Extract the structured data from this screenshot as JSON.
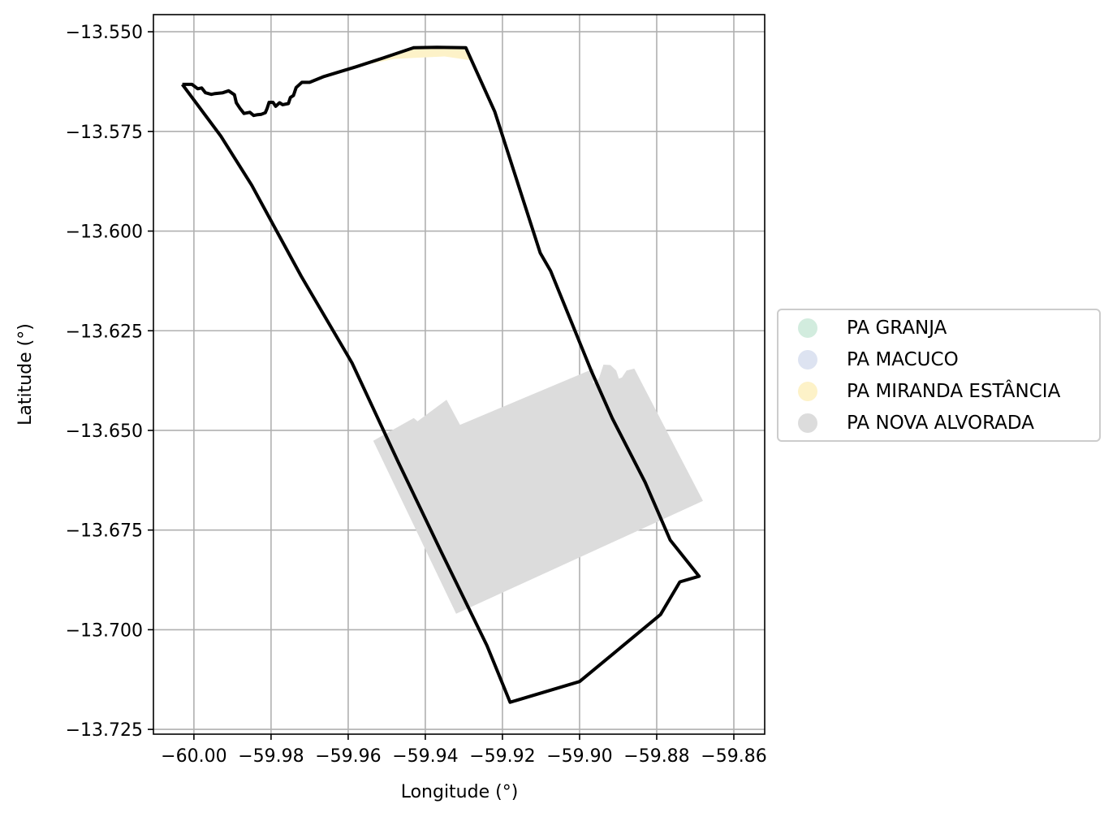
{
  "chart_data": {
    "type": "map",
    "xlabel": "Longitude (°)",
    "ylabel": "Latitude (°)",
    "xlim": [
      -60.0105,
      -59.852
    ],
    "ylim": [
      -13.7262,
      -13.5457
    ],
    "xticks": [
      -60.0,
      -59.98,
      -59.96,
      -59.94,
      -59.92,
      -59.9,
      -59.88,
      -59.86
    ],
    "xtick_labels": [
      "−60.00",
      "−59.98",
      "−59.96",
      "−59.94",
      "−59.92",
      "−59.90",
      "−59.88",
      "−59.86"
    ],
    "yticks": [
      -13.55,
      -13.575,
      -13.6,
      -13.625,
      -13.65,
      -13.675,
      -13.7,
      -13.725
    ],
    "ytick_labels": [
      "−13.550",
      "−13.575",
      "−13.600",
      "−13.625",
      "−13.650",
      "−13.675",
      "−13.700",
      "−13.725"
    ],
    "grid": true,
    "legend_position": "center-right outside",
    "legend": [
      {
        "label": "PA GRANJA",
        "color": "#d2ecde"
      },
      {
        "label": "PA MACUCO",
        "color": "#dde3f1"
      },
      {
        "label": "PA MIRANDA ESTÂNCIA",
        "color": "#fdf2c8"
      },
      {
        "label": "PA NOVA ALVORADA",
        "color": "#dcdcdc"
      }
    ],
    "regions": [
      {
        "name": "PA NOVA ALVORADA",
        "color": "#dcdcdc",
        "polygon": [
          [
            -59.9535,
            -13.6526
          ],
          [
            -59.943,
            -13.6469
          ],
          [
            -59.942,
            -13.6477
          ],
          [
            -59.9345,
            -13.6423
          ],
          [
            -59.931,
            -13.6486
          ],
          [
            -59.8963,
            -13.6345
          ],
          [
            -59.8965,
            -13.6383
          ],
          [
            -59.895,
            -13.637
          ],
          [
            -59.8938,
            -13.6335
          ],
          [
            -59.892,
            -13.6336
          ],
          [
            -59.8905,
            -13.635
          ],
          [
            -59.8898,
            -13.637
          ],
          [
            -59.889,
            -13.6367
          ],
          [
            -59.8878,
            -13.635
          ],
          [
            -59.8858,
            -13.6345
          ],
          [
            -59.868,
            -13.6677
          ],
          [
            -59.932,
            -13.696
          ]
        ]
      },
      {
        "name": "PA MIRANDA ESTÂNCIA",
        "color": "#fdf2c8",
        "polygon": [
          [
            -59.958,
            -13.5588
          ],
          [
            -59.943,
            -13.554
          ],
          [
            -59.93,
            -13.5542
          ],
          [
            -59.928,
            -13.5572
          ],
          [
            -59.935,
            -13.5562
          ],
          [
            -59.948,
            -13.5568
          ]
        ]
      }
    ],
    "boundary": [
      [
        -60.003,
        -13.5632
      ],
      [
        -60.0005,
        -13.5632
      ],
      [
        -59.999,
        -13.5643
      ],
      [
        -59.998,
        -13.5641
      ],
      [
        -59.997,
        -13.5653
      ],
      [
        -59.9955,
        -13.5657
      ],
      [
        -59.9945,
        -13.5655
      ],
      [
        -59.9925,
        -13.5653
      ],
      [
        -59.991,
        -13.5648
      ],
      [
        -59.9895,
        -13.5658
      ],
      [
        -59.989,
        -13.5678
      ],
      [
        -59.988,
        -13.5693
      ],
      [
        -59.987,
        -13.5705
      ],
      [
        -59.9855,
        -13.5702
      ],
      [
        -59.9845,
        -13.571
      ],
      [
        -59.9835,
        -13.5708
      ],
      [
        -59.9825,
        -13.5707
      ],
      [
        -59.9815,
        -13.5703
      ],
      [
        -59.981,
        -13.5692
      ],
      [
        -59.9805,
        -13.5677
      ],
      [
        -59.9795,
        -13.5677
      ],
      [
        -59.9788,
        -13.5687
      ],
      [
        -59.9778,
        -13.5678
      ],
      [
        -59.977,
        -13.5683
      ],
      [
        -59.9755,
        -13.568
      ],
      [
        -59.975,
        -13.5665
      ],
      [
        -59.9742,
        -13.566
      ],
      [
        -59.9735,
        -13.564
      ],
      [
        -59.972,
        -13.5627
      ],
      [
        -59.97,
        -13.5627
      ],
      [
        -59.9665,
        -13.5613
      ],
      [
        -59.958,
        -13.5588
      ],
      [
        -59.951,
        -13.5566
      ],
      [
        -59.943,
        -13.554
      ],
      [
        -59.937,
        -13.5539
      ],
      [
        -59.9295,
        -13.554
      ],
      [
        -59.922,
        -13.57
      ],
      [
        -59.9102,
        -13.6055
      ],
      [
        -59.9075,
        -13.61
      ],
      [
        -59.897,
        -13.635
      ],
      [
        -59.8915,
        -13.647
      ],
      [
        -59.883,
        -13.663
      ],
      [
        -59.8765,
        -13.6775
      ],
      [
        -59.869,
        -13.6866
      ],
      [
        -59.874,
        -13.688
      ],
      [
        -59.879,
        -13.6962
      ],
      [
        -59.891,
        -13.7058
      ],
      [
        -59.9,
        -13.713
      ],
      [
        -59.918,
        -13.7182
      ],
      [
        -59.924,
        -13.704
      ],
      [
        -59.936,
        -13.6802
      ],
      [
        -59.947,
        -13.658
      ],
      [
        -59.959,
        -13.6331
      ],
      [
        -59.9722,
        -13.6113
      ],
      [
        -59.985,
        -13.5885
      ],
      [
        -59.993,
        -13.5762
      ],
      [
        -60.003,
        -13.5632
      ]
    ]
  }
}
